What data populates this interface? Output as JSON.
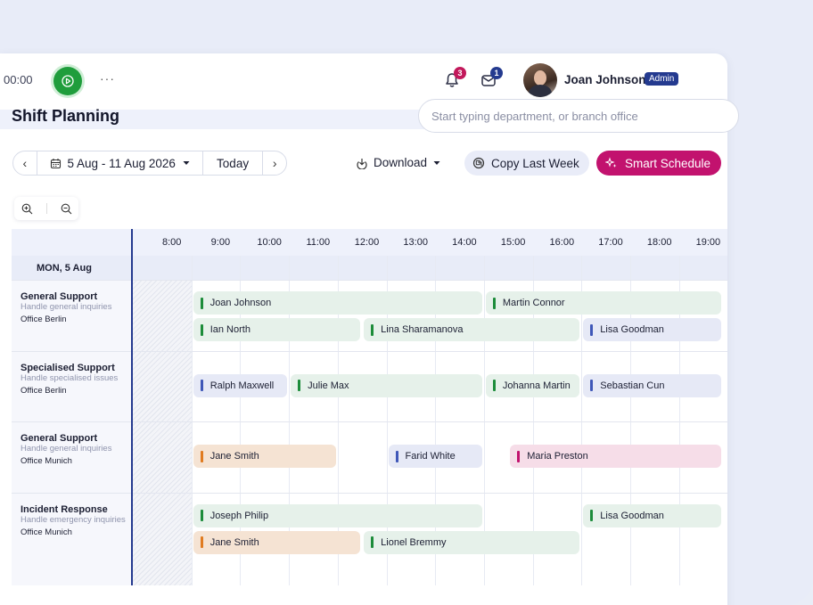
{
  "topbar": {
    "timer": "00:00",
    "more": "···",
    "notifications_count": "3",
    "messages_count": "1",
    "user_name": "Joan Johnson",
    "user_role": "Admin"
  },
  "page": {
    "title": "Shift Planning",
    "search_placeholder": "Start typing department, or branch office"
  },
  "toolbar": {
    "prev": "‹",
    "next": "›",
    "date_range": "5 Aug - 11 Aug 2026",
    "today": "Today",
    "download": "Download",
    "copy_last_week": "Copy Last Week",
    "smart_schedule": "Smart Schedule"
  },
  "timeline": {
    "hours": [
      "8:00",
      "9:00",
      "10:00",
      "11:00",
      "12:00",
      "13:00",
      "14:00",
      "15:00",
      "16:00",
      "17:00",
      "18:00",
      "19:00"
    ],
    "day": "MON, 5 Aug"
  },
  "departments": [
    {
      "name": "General Support",
      "desc": "Handle general inquiries",
      "office": "Office Berlin"
    },
    {
      "name": "Specialised Support",
      "desc": "Handle specialised issues",
      "office": "Office Berlin"
    },
    {
      "name": "General Support",
      "desc": "Handle general inquiries",
      "office": "Office Munich"
    },
    {
      "name": "Incident Response",
      "desc": "Handle emergency inquiries",
      "office": "Office Munich"
    }
  ],
  "shifts": [
    {
      "name": "Joan Johnson",
      "color": "green",
      "row": 0,
      "lane": 0,
      "start": 9.0,
      "end": 15.0
    },
    {
      "name": "Martin Connor",
      "color": "green",
      "row": 0,
      "lane": 0,
      "start": 15.0,
      "end": 19.9
    },
    {
      "name": "Ian North",
      "color": "green",
      "row": 0,
      "lane": 1,
      "start": 9.0,
      "end": 12.5
    },
    {
      "name": "Lina Sharamanova",
      "color": "green",
      "row": 0,
      "lane": 1,
      "start": 12.5,
      "end": 17.0
    },
    {
      "name": "Lisa Goodman",
      "color": "blue",
      "row": 0,
      "lane": 1,
      "start": 17.0,
      "end": 19.9
    },
    {
      "name": "Ralph Maxwell",
      "color": "blue",
      "row": 1,
      "lane": 0,
      "start": 9.0,
      "end": 11.0
    },
    {
      "name": "Julie Max",
      "color": "green",
      "row": 1,
      "lane": 0,
      "start": 11.0,
      "end": 15.0
    },
    {
      "name": "Johanna Martin",
      "color": "green",
      "row": 1,
      "lane": 0,
      "start": 15.0,
      "end": 17.0
    },
    {
      "name": "Sebastian Cun",
      "color": "blue",
      "row": 1,
      "lane": 0,
      "start": 17.0,
      "end": 19.9
    },
    {
      "name": "Jane Smith",
      "color": "orange",
      "row": 2,
      "lane": 0,
      "start": 9.0,
      "end": 12.0
    },
    {
      "name": "Farid White",
      "color": "blue",
      "row": 2,
      "lane": 0,
      "start": 13.0,
      "end": 15.0
    },
    {
      "name": "Maria Preston",
      "color": "pink",
      "row": 2,
      "lane": 0,
      "start": 15.5,
      "end": 19.9
    },
    {
      "name": "Joseph Philip",
      "color": "green",
      "row": 3,
      "lane": 0,
      "start": 9.0,
      "end": 15.0
    },
    {
      "name": "Lisa Goodman",
      "color": "green",
      "row": 3,
      "lane": 0,
      "start": 17.0,
      "end": 19.9
    },
    {
      "name": "Jane Smith",
      "color": "orange",
      "row": 3,
      "lane": 1,
      "start": 9.0,
      "end": 12.5
    },
    {
      "name": "Lionel Bremmy",
      "color": "green",
      "row": 3,
      "lane": 1,
      "start": 12.5,
      "end": 17.0
    }
  ],
  "colors": {
    "brand_primary": "#c2126e",
    "brand_navy": "#243a8f",
    "play_green": "#1f9d3c"
  }
}
